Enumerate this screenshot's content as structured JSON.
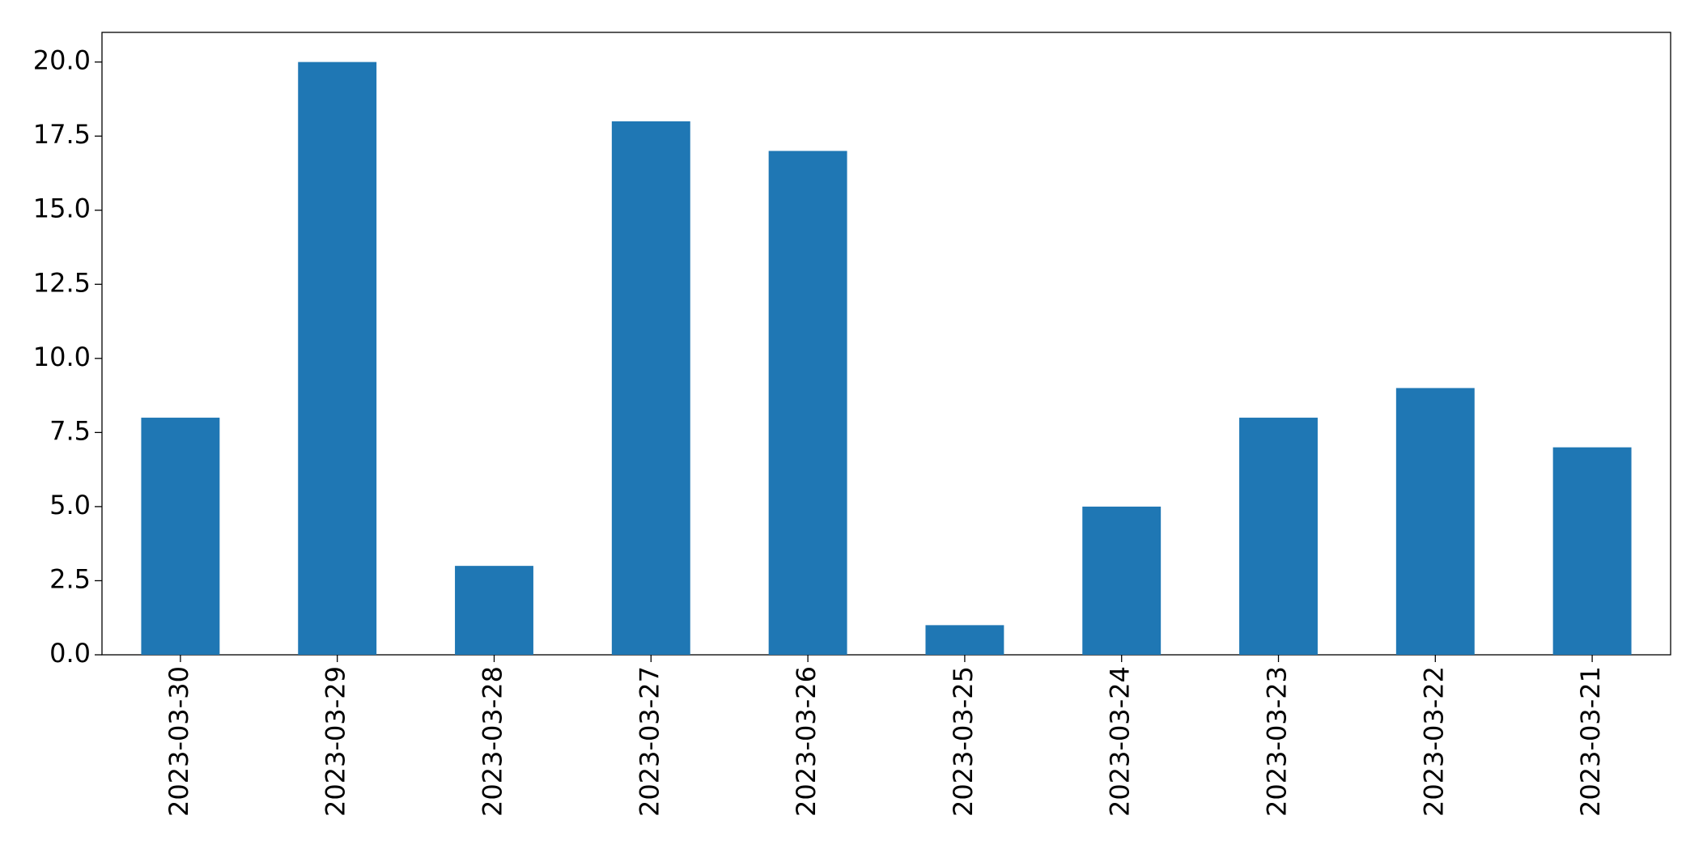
{
  "chart_data": {
    "type": "bar",
    "categories": [
      "2023-03-30",
      "2023-03-29",
      "2023-03-28",
      "2023-03-27",
      "2023-03-26",
      "2023-03-25",
      "2023-03-24",
      "2023-03-23",
      "2023-03-22",
      "2023-03-21"
    ],
    "values": [
      8,
      20,
      3,
      18,
      17,
      1,
      5,
      8,
      9,
      7
    ],
    "color": "#1f77b4",
    "ylim": [
      0,
      21
    ],
    "yticks": [
      {
        "value": 0,
        "label": "0.0"
      },
      2.5,
      {
        "value": 5,
        "label": "5.0"
      },
      7.5,
      {
        "value": 10,
        "label": "10.0"
      },
      12.5,
      {
        "value": 15,
        "label": "15.0"
      },
      17.5,
      {
        "value": 20,
        "label": "20.0"
      }
    ],
    "grid": false
  }
}
